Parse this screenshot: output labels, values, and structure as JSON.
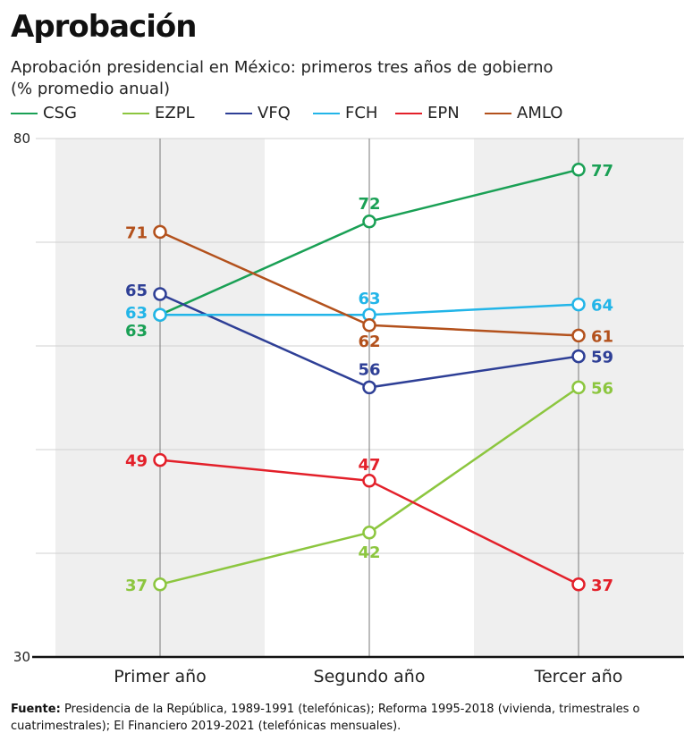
{
  "header": {
    "title": "Aprobación",
    "subtitle_line1": "Aprobación presidencial en México: primeros tres años de gobierno",
    "subtitle_line2": "(% promedio anual)"
  },
  "source": {
    "label": "Fuente:",
    "text": "Presidencia de la República, 1989-1991 (telefónicas); Reforma 1995-2018 (vivienda, trimestrales o cuatrimestrales); El Financiero 2019-2021 (telefónicas mensuales)."
  },
  "chart_data": {
    "type": "line",
    "title": "Aprobación",
    "subtitle": "Aprobación presidencial en México: primeros tres años de gobierno (% promedio anual)",
    "categories": [
      "Primer año",
      "Segundo año",
      "Tercer año"
    ],
    "ylim": [
      30,
      80
    ],
    "yticks": [
      30,
      80
    ],
    "grid": true,
    "legend": "top-left",
    "series": [
      {
        "name": "CSG",
        "color": "#1aa055",
        "values": [
          63,
          72,
          77
        ]
      },
      {
        "name": "EZPL",
        "color": "#8cc63f",
        "values": [
          37,
          42,
          56
        ]
      },
      {
        "name": "VFQ",
        "color": "#2e3f96",
        "values": [
          65,
          56,
          59
        ]
      },
      {
        "name": "FCH",
        "color": "#22b5e8",
        "values": [
          63,
          63,
          64
        ]
      },
      {
        "name": "EPN",
        "color": "#e3202a",
        "values": [
          49,
          47,
          37
        ]
      },
      {
        "name": "AMLO",
        "color": "#b3511c",
        "values": [
          71,
          62,
          61
        ]
      }
    ]
  }
}
